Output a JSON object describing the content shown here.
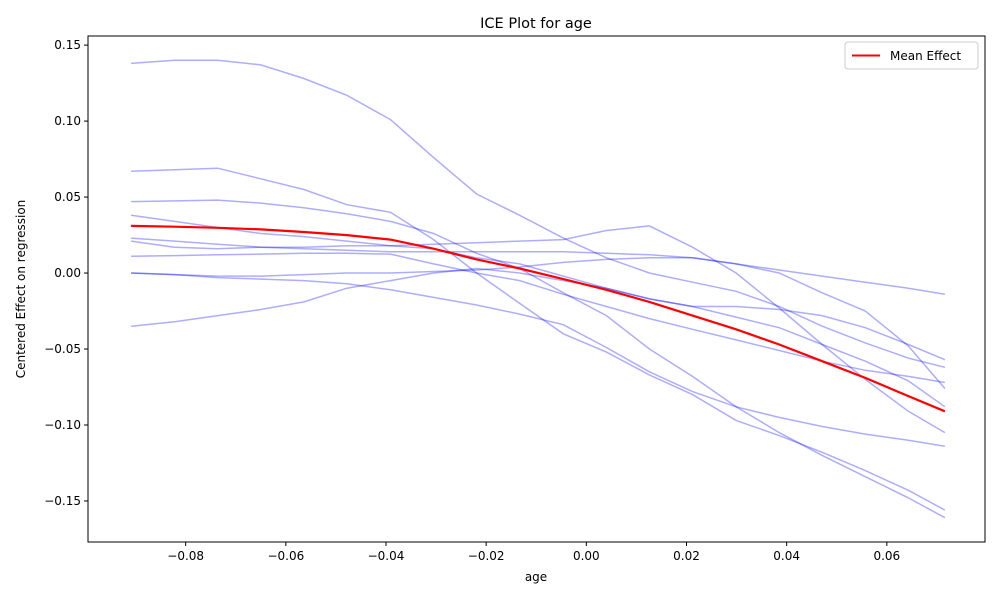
{
  "chart_data": {
    "type": "line",
    "title": "ICE Plot for age",
    "xlabel": "age",
    "ylabel": "Centered Effect on regression",
    "xlim": [
      -0.0995,
      0.0796
    ],
    "ylim": [
      -0.177,
      0.156
    ],
    "x_ticks": [
      -0.08,
      -0.06,
      -0.04,
      -0.02,
      0.0,
      0.02,
      0.04,
      0.06
    ],
    "x_tick_labels": [
      "−0.08",
      "−0.06",
      "−0.04",
      "−0.02",
      "0.00",
      "0.02",
      "0.04",
      "0.06"
    ],
    "y_ticks": [
      -0.15,
      -0.1,
      -0.05,
      0.0,
      0.05,
      0.1,
      0.15
    ],
    "y_tick_labels": [
      "−0.15",
      "−0.10",
      "−0.05",
      "0.00",
      "0.05",
      "0.10",
      "0.15"
    ],
    "grid": false,
    "legend": {
      "placement": "top-right",
      "entries": [
        "Mean Effect"
      ]
    },
    "colors": {
      "ice": "#0000ff",
      "ice_opacity": 0.32,
      "mean": "#ff0000"
    },
    "x": [
      -0.0909,
      -0.0822,
      -0.0736,
      -0.065,
      -0.0564,
      -0.0478,
      -0.0391,
      -0.0305,
      -0.0219,
      -0.0133,
      -0.0046,
      0.004,
      0.0126,
      0.0212,
      0.0299,
      0.0385,
      0.0471,
      0.0557,
      0.0643,
      0.0716
    ],
    "mean": {
      "name": "Mean Effect",
      "values": [
        0.031,
        0.0305,
        0.0298,
        0.0287,
        0.027,
        0.025,
        0.022,
        0.016,
        0.009,
        0.003,
        -0.004,
        -0.011,
        -0.019,
        -0.028,
        -0.037,
        -0.047,
        -0.058,
        -0.069,
        -0.081,
        -0.091
      ]
    },
    "series": [
      {
        "values": [
          0.138,
          0.14,
          0.14,
          0.137,
          0.128,
          0.117,
          0.101,
          0.076,
          0.052,
          0.038,
          0.023,
          0.01,
          0.0,
          -0.006,
          -0.012,
          -0.022,
          -0.035,
          -0.046,
          -0.056,
          -0.062
        ]
      },
      {
        "values": [
          0.067,
          0.068,
          0.069,
          0.062,
          0.055,
          0.045,
          0.04,
          0.022,
          0.0,
          -0.02,
          -0.04,
          -0.052,
          -0.067,
          -0.08,
          -0.097,
          -0.107,
          -0.118,
          -0.13,
          -0.143,
          -0.156
        ]
      },
      {
        "values": [
          0.047,
          0.0475,
          0.048,
          0.046,
          0.043,
          0.039,
          0.034,
          0.026,
          0.013,
          0.003,
          -0.013,
          -0.028,
          -0.05,
          -0.068,
          -0.088,
          -0.105,
          -0.12,
          -0.134,
          -0.148,
          -0.161
        ]
      },
      {
        "values": [
          0.038,
          0.034,
          0.03,
          0.026,
          0.024,
          0.021,
          0.018,
          0.016,
          0.01,
          0.006,
          -0.002,
          -0.01,
          -0.017,
          -0.022,
          -0.022,
          -0.024,
          -0.028,
          -0.036,
          -0.047,
          -0.057
        ]
      },
      {
        "values": [
          0.023,
          0.021,
          0.019,
          0.017,
          0.016,
          0.015,
          0.014,
          0.014,
          0.014,
          0.014,
          0.014,
          0.013,
          0.012,
          0.01,
          0.006,
          0.002,
          -0.002,
          -0.006,
          -0.01,
          -0.014
        ]
      },
      {
        "values": [
          0.021,
          0.017,
          0.016,
          0.017,
          0.017,
          0.018,
          0.018,
          0.019,
          0.02,
          0.021,
          0.022,
          0.028,
          0.031,
          0.017,
          0.0,
          -0.023,
          -0.047,
          -0.07,
          -0.091,
          -0.105
        ]
      },
      {
        "values": [
          0.011,
          0.0115,
          0.012,
          0.0125,
          0.013,
          0.013,
          0.0125,
          0.006,
          0.0,
          -0.005,
          -0.014,
          -0.022,
          -0.03,
          -0.037,
          -0.044,
          -0.051,
          -0.058,
          -0.064,
          -0.068,
          -0.072
        ]
      },
      {
        "values": [
          0.0,
          -0.001,
          -0.002,
          -0.002,
          -0.001,
          0.0,
          0.0,
          0.001,
          0.002,
          0.004,
          0.007,
          0.009,
          0.01,
          0.01,
          0.006,
          0.0,
          -0.013,
          -0.025,
          -0.048,
          -0.076
        ]
      },
      {
        "values": [
          0.0,
          -0.001,
          -0.003,
          -0.004,
          -0.005,
          -0.007,
          -0.011,
          -0.016,
          -0.021,
          -0.027,
          -0.034,
          -0.049,
          -0.065,
          -0.078,
          -0.088,
          -0.095,
          -0.101,
          -0.106,
          -0.11,
          -0.114
        ]
      },
      {
        "values": [
          -0.035,
          -0.032,
          -0.028,
          -0.024,
          -0.019,
          -0.01,
          -0.005,
          0.0,
          0.003,
          0.0,
          -0.005,
          -0.01,
          -0.017,
          -0.022,
          -0.029,
          -0.036,
          -0.047,
          -0.058,
          -0.071,
          -0.088
        ]
      }
    ]
  }
}
